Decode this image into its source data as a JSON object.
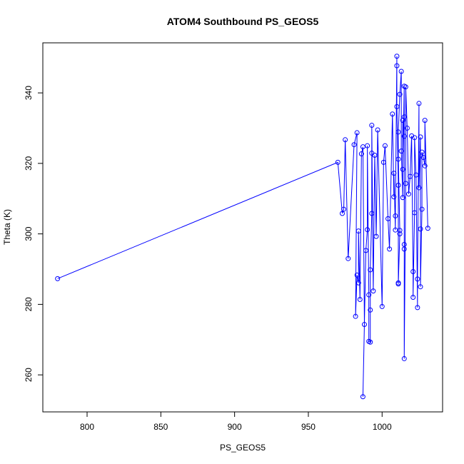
{
  "chart_data": {
    "type": "line",
    "title": "ATOM4 Southbound PS_GEOS5",
    "xlabel": "PS_GEOS5",
    "ylabel": "Theta (K)",
    "color": "#0000ff",
    "markers": true,
    "x": [
      780,
      970,
      973,
      974,
      975,
      977,
      981,
      983,
      982,
      983,
      984,
      984,
      985,
      986,
      987,
      988,
      987,
      989,
      990,
      990,
      991,
      991,
      992,
      992,
      992,
      993,
      993,
      993,
      994,
      995,
      996,
      997,
      1000,
      1001,
      1002,
      1004,
      1005,
      1007,
      1008,
      1008,
      1009,
      1009,
      1010,
      1010,
      1010,
      1011,
      1011,
      1011,
      1012,
      1012,
      1011,
      1011,
      1012,
      1013,
      1013,
      1014,
      1014,
      1014,
      1015,
      1015,
      1015,
      1015,
      1015,
      1015,
      1016,
      1016,
      1017,
      1018,
      1019,
      1020,
      1021,
      1021,
      1022,
      1022,
      1023,
      1024,
      1024,
      1025,
      1025,
      1026,
      1026,
      1026,
      1027,
      1027,
      1028,
      1029,
      1029,
      1031
    ],
    "y": [
      287.3,
      320.3,
      305.8,
      307,
      326.7,
      293,
      325.3,
      328.7,
      276.6,
      288.3,
      286.1,
      300.8,
      281.4,
      322.7,
      324.7,
      274.3,
      253.8,
      295.3,
      301.2,
      325,
      282.7,
      269.5,
      269.3,
      278.4,
      289.8,
      305.8,
      322.9,
      330.8,
      283.8,
      322.3,
      299.3,
      329.5,
      279.4,
      320.3,
      325,
      304.3,
      295.7,
      334,
      310.5,
      317.2,
      301.1,
      305.1,
      350.4,
      347.7,
      336.1,
      313.8,
      286.1,
      285.8,
      300,
      301,
      321.2,
      328.9,
      339.6,
      346.1,
      323.5,
      310.3,
      332.2,
      318.3,
      341.9,
      333.2,
      327.7,
      297,
      295.7,
      264.6,
      314.3,
      341.7,
      330,
      311.3,
      316.3,
      327.8,
      289.3,
      282,
      306,
      327.3,
      316.7,
      279.1,
      287.2,
      337,
      313.1,
      327.5,
      301.4,
      285,
      307,
      323.2,
      321.7,
      319.3,
      332.2,
      301.6
    ],
    "xlim": [
      770,
      1041
    ],
    "ylim": [
      249.5,
      354.2
    ],
    "xticks": [
      800,
      850,
      900,
      950,
      1000
    ],
    "yticks": [
      260,
      280,
      300,
      320,
      340
    ]
  }
}
